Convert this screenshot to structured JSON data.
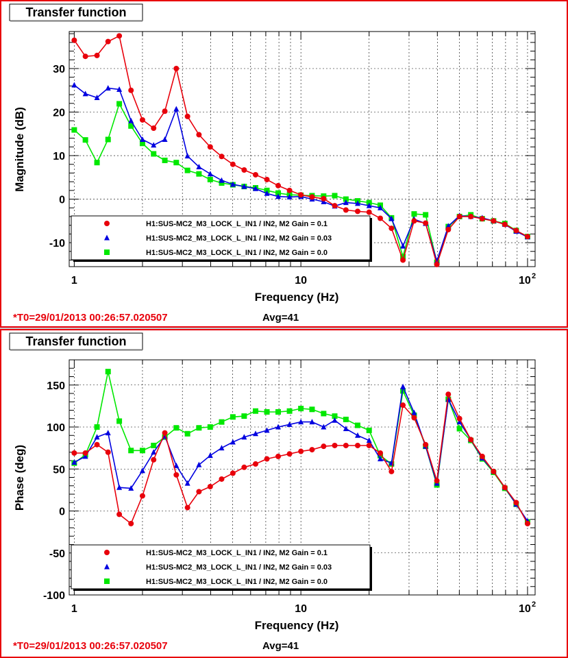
{
  "panels": [
    {
      "title": "Transfer function",
      "footer": {
        "t0": "*T0=29/01/2013 00:26:57.020507",
        "avg": "Avg=41"
      },
      "chart_data": {
        "type": "line",
        "xscale": "log",
        "xlabel": "Frequency (Hz)",
        "ylabel": "Magnitude (dB)",
        "xlim": [
          0.95,
          108
        ],
        "ylim": [
          -15.5,
          38.5
        ],
        "xticks": [
          {
            "value": 1,
            "label": "1"
          },
          {
            "value": 10,
            "label": "10"
          },
          {
            "value": 100,
            "label": "10",
            "sup": "2"
          }
        ],
        "yticks": [
          -10,
          0,
          10,
          20,
          30
        ],
        "grid": true,
        "legend_position": "bottom-left",
        "x": [
          1,
          1.12,
          1.26,
          1.41,
          1.58,
          1.78,
          2,
          2.24,
          2.51,
          2.82,
          3.16,
          3.55,
          3.98,
          4.47,
          5.01,
          5.62,
          6.31,
          7.08,
          7.94,
          8.91,
          10,
          11.2,
          12.6,
          14.1,
          15.8,
          17.8,
          20,
          22.4,
          25.1,
          28.2,
          31.6,
          35.5,
          39.8,
          44.7,
          50.1,
          56.2,
          63.1,
          70.8,
          79.4,
          89.1,
          100
        ],
        "series": [
          {
            "name": "H1:SUS-MC2_M3_LOCK_L_IN1 / IN2, M2 Gain = 0.1",
            "color": "#e8000b",
            "marker": "circle",
            "values": [
              36.5,
              32.8,
              33.0,
              36.2,
              37.5,
              25.0,
              18.2,
              16.3,
              20.2,
              30.0,
              19.0,
              14.8,
              12.0,
              9.8,
              8.0,
              6.7,
              5.6,
              4.5,
              3.1,
              2.0,
              1.0,
              0.5,
              0.1,
              -1.5,
              -2.5,
              -2.8,
              -3.0,
              -4.4,
              -6.7,
              -14.0,
              -5.0,
              -5.5,
              -15.0,
              -7.0,
              -4.0,
              -4.0,
              -4.5,
              -5.0,
              -5.8,
              -7.2,
              -8.6
            ]
          },
          {
            "name": "H1:SUS-MC2_M3_LOCK_L_IN1 / IN2, M2 Gain = 0.03",
            "color": "#0000e0",
            "marker": "triangle",
            "values": [
              26.2,
              24.2,
              23.3,
              25.5,
              25.2,
              18.0,
              13.7,
              12.4,
              13.7,
              20.7,
              9.9,
              7.4,
              5.8,
              4.3,
              3.4,
              2.9,
              2.4,
              1.3,
              0.6,
              0.5,
              0.6,
              0.0,
              -0.6,
              -1.6,
              -0.8,
              -1.0,
              -1.5,
              -2.0,
              -4.5,
              -10.8,
              -4.6,
              -5.6,
              -14.2,
              -6.2,
              -3.8,
              -4.0,
              -4.3,
              -5.0,
              -5.8,
              -7.4,
              -8.7
            ]
          },
          {
            "name": "H1:SUS-MC2_M3_LOCK_L_IN1 / IN2, M2 Gain = 0.0",
            "color": "#00e800",
            "marker": "square",
            "values": [
              15.9,
              13.6,
              8.4,
              13.7,
              21.9,
              16.8,
              12.8,
              10.4,
              8.9,
              8.4,
              6.6,
              5.8,
              4.5,
              3.7,
              3.3,
              2.9,
              2.6,
              2.0,
              1.4,
              1.0,
              0.9,
              0.8,
              0.7,
              0.8,
              0.0,
              -0.4,
              -0.8,
              -1.4,
              -4.3,
              -13.2,
              -3.4,
              -3.6,
              -14.5,
              -6.3,
              -4.0,
              -3.6,
              -4.5,
              -5.0,
              -5.6,
              -7.2,
              -8.6
            ]
          }
        ]
      }
    },
    {
      "title": "Transfer function",
      "footer": {
        "t0": "*T0=29/01/2013 00:26:57.020507",
        "avg": "Avg=41"
      },
      "chart_data": {
        "type": "line",
        "xscale": "log",
        "xlabel": "Frequency (Hz)",
        "ylabel": "Phase (deg)",
        "xlim": [
          0.95,
          108
        ],
        "ylim": [
          -100,
          180
        ],
        "xticks": [
          {
            "value": 1,
            "label": "1"
          },
          {
            "value": 10,
            "label": "10"
          },
          {
            "value": 100,
            "label": "10",
            "sup": "2"
          }
        ],
        "yticks": [
          -100,
          -50,
          0,
          50,
          100,
          150
        ],
        "grid": true,
        "legend_position": "bottom-left",
        "x": [
          1,
          1.12,
          1.26,
          1.41,
          1.58,
          1.78,
          2,
          2.24,
          2.51,
          2.82,
          3.16,
          3.55,
          3.98,
          4.47,
          5.01,
          5.62,
          6.31,
          7.08,
          7.94,
          8.91,
          10,
          11.2,
          12.6,
          14.1,
          15.8,
          17.8,
          20,
          22.4,
          25.1,
          28.2,
          31.6,
          35.5,
          39.8,
          44.7,
          50.1,
          56.2,
          63.1,
          70.8,
          79.4,
          89.1,
          100
        ],
        "series": [
          {
            "name": "H1:SUS-MC2_M3_LOCK_L_IN1 / IN2, M2 Gain = 0.1",
            "color": "#e8000b",
            "marker": "circle",
            "values": [
              69,
              69,
              79,
              70,
              -4,
              -15,
              18,
              61,
              93,
              43,
              4,
              23,
              29,
              38,
              45,
              52,
              56,
              62,
              65,
              68,
              71,
              73,
              77,
              78,
              78,
              78,
              78,
              69,
              47,
              126,
              111,
              79,
              36,
              139,
              110,
              85,
              65,
              47,
              28,
              10,
              -15
            ]
          },
          {
            "name": "H1:SUS-MC2_M3_LOCK_L_IN1 / IN2, M2 Gain = 0.03",
            "color": "#0000e0",
            "marker": "triangle",
            "values": [
              58,
              65,
              88,
              93,
              28,
              27,
              48,
              70,
              89,
              54,
              33,
              55,
              66,
              75,
              82,
              88,
              92,
              96,
              100,
              103,
              106,
              106,
              100,
              108,
              98,
              90,
              84,
              62,
              57,
              148,
              117,
              77,
              33,
              133,
              106,
              85,
              63,
              47,
              28,
              8,
              -12
            ]
          },
          {
            "name": "H1:SUS-MC2_M3_LOCK_L_IN1 / IN2, M2 Gain = 0.0",
            "color": "#00e800",
            "marker": "square",
            "values": [
              57,
              67,
              100,
              166,
              107,
              72,
              72,
              78,
              88,
              99,
              92,
              99,
              100,
              106,
              112,
              113,
              119,
              118,
              118,
              119,
              122,
              121,
              116,
              113,
              109,
              102,
              96,
              66,
              56,
              143,
              114,
              77,
              31,
              133,
              98,
              84,
              62,
              46,
              27,
              8,
              -13
            ]
          }
        ]
      }
    }
  ]
}
